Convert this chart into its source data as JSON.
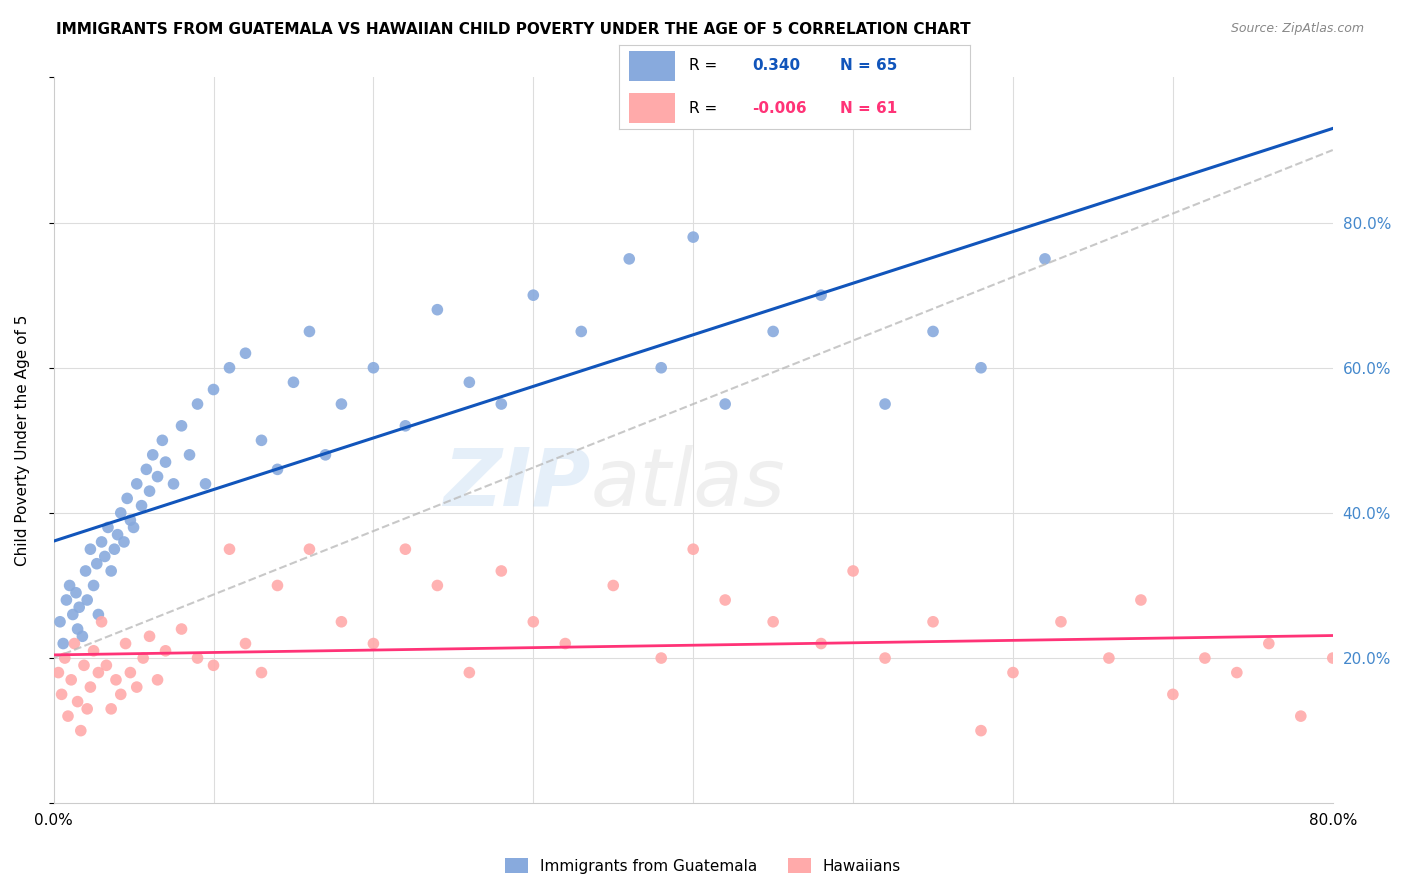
{
  "title": "IMMIGRANTS FROM GUATEMALA VS HAWAIIAN CHILD POVERTY UNDER THE AGE OF 5 CORRELATION CHART",
  "source": "Source: ZipAtlas.com",
  "ylabel": "Child Poverty Under the Age of 5",
  "legend_label1": "Immigrants from Guatemala",
  "legend_label2": "Hawaiians",
  "r1": 0.34,
  "n1": 65,
  "r2": -0.006,
  "n2": 61,
  "blue_color": "#88AADD",
  "pink_color": "#FFAAAA",
  "line_blue": "#1155BB",
  "line_pink": "#FF3377",
  "line_gray": "#BBBBBB",
  "bg_color": "#FFFFFF",
  "grid_color": "#DDDDDD",
  "right_label_color": "#4488CC",
  "watermark_zip": "ZIP",
  "watermark_atlas": "atlas",
  "blue_x": [
    0.4,
    0.6,
    0.8,
    1.0,
    1.2,
    1.4,
    1.5,
    1.6,
    1.8,
    2.0,
    2.1,
    2.3,
    2.5,
    2.7,
    2.8,
    3.0,
    3.2,
    3.4,
    3.6,
    3.8,
    4.0,
    4.2,
    4.4,
    4.6,
    4.8,
    5.0,
    5.2,
    5.5,
    5.8,
    6.0,
    6.2,
    6.5,
    6.8,
    7.0,
    7.5,
    8.0,
    8.5,
    9.0,
    9.5,
    10.0,
    11.0,
    12.0,
    13.0,
    14.0,
    15.0,
    16.0,
    17.0,
    18.0,
    20.0,
    22.0,
    24.0,
    26.0,
    28.0,
    30.0,
    33.0,
    36.0,
    38.0,
    40.0,
    42.0,
    45.0,
    48.0,
    52.0,
    55.0,
    58.0,
    62.0
  ],
  "blue_y": [
    25,
    22,
    28,
    30,
    26,
    29,
    24,
    27,
    23,
    32,
    28,
    35,
    30,
    33,
    26,
    36,
    34,
    38,
    32,
    35,
    37,
    40,
    36,
    42,
    39,
    38,
    44,
    41,
    46,
    43,
    48,
    45,
    50,
    47,
    44,
    52,
    48,
    55,
    44,
    57,
    60,
    62,
    50,
    46,
    58,
    65,
    48,
    55,
    60,
    52,
    68,
    58,
    55,
    70,
    65,
    75,
    60,
    78,
    55,
    65,
    70,
    55,
    65,
    60,
    75
  ],
  "pink_x": [
    0.3,
    0.5,
    0.7,
    0.9,
    1.1,
    1.3,
    1.5,
    1.7,
    1.9,
    2.1,
    2.3,
    2.5,
    2.8,
    3.0,
    3.3,
    3.6,
    3.9,
    4.2,
    4.5,
    4.8,
    5.2,
    5.6,
    6.0,
    6.5,
    7.0,
    8.0,
    9.0,
    10.0,
    11.0,
    12.0,
    13.0,
    14.0,
    16.0,
    18.0,
    20.0,
    22.0,
    24.0,
    26.0,
    28.0,
    30.0,
    32.0,
    35.0,
    38.0,
    40.0,
    42.0,
    45.0,
    48.0,
    50.0,
    52.0,
    55.0,
    58.0,
    60.0,
    63.0,
    66.0,
    68.0,
    70.0,
    72.0,
    74.0,
    76.0,
    78.0,
    80.0
  ],
  "pink_y": [
    18,
    15,
    20,
    12,
    17,
    22,
    14,
    10,
    19,
    13,
    16,
    21,
    18,
    25,
    19,
    13,
    17,
    15,
    22,
    18,
    16,
    20,
    23,
    17,
    21,
    24,
    20,
    19,
    35,
    22,
    18,
    30,
    35,
    25,
    22,
    35,
    30,
    18,
    32,
    25,
    22,
    30,
    20,
    35,
    28,
    25,
    22,
    32,
    20,
    25,
    10,
    18,
    25,
    20,
    28,
    15,
    20,
    18,
    22,
    12,
    20
  ],
  "xlim": [
    0,
    80
  ],
  "ylim": [
    0,
    100
  ]
}
